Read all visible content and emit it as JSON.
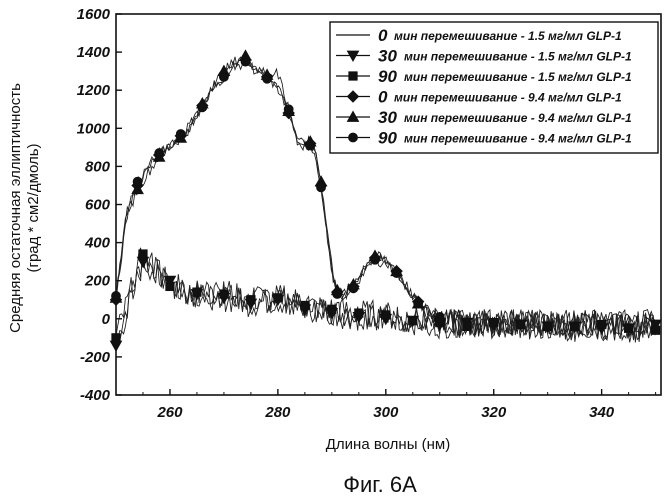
{
  "chart_data": {
    "type": "line",
    "title": "",
    "caption": "Фиг. 6A",
    "xlabel": "Длина волны (нм)",
    "ylabel_line1": "Средняя остаточная эллиптичность",
    "ylabel_line2": "(град * см2/дмоль)",
    "xlim": [
      250,
      351
    ],
    "ylim": [
      -400,
      1600
    ],
    "x_ticks": [
      260,
      280,
      300,
      320,
      340
    ],
    "y_ticks": [
      -400,
      -200,
      0,
      200,
      400,
      600,
      800,
      1000,
      1200,
      1400,
      1600
    ],
    "legend_position": "top-right",
    "series": [
      {
        "name": "мин перемешивание - 1.5 мг/мл GLP-1",
        "legend_num": "0",
        "marker": "none",
        "group": "low",
        "x": [
          250,
          255,
          260,
          265,
          270,
          275,
          280,
          285,
          290,
          295,
          300,
          305,
          310,
          315,
          320,
          325,
          330,
          335,
          340,
          345,
          350
        ],
        "y": [
          -120,
          320,
          180,
          120,
          140,
          90,
          120,
          60,
          40,
          20,
          10,
          0,
          -20,
          -30,
          -20,
          -40,
          -30,
          -50,
          -40,
          -60,
          -40
        ]
      },
      {
        "name": "мин перемешивание - 1.5 мг/мл GLP-1",
        "legend_num": "30",
        "marker": "triangle-down",
        "group": "low",
        "x": [
          250,
          255,
          260,
          265,
          270,
          275,
          280,
          285,
          290,
          295,
          300,
          305,
          310,
          315,
          320,
          325,
          330,
          335,
          340,
          345,
          350
        ],
        "y": [
          -140,
          300,
          200,
          130,
          110,
          80,
          100,
          50,
          30,
          10,
          0,
          -10,
          -30,
          -20,
          -30,
          -30,
          -40,
          -40,
          -50,
          -50,
          -30
        ]
      },
      {
        "name": "мин перемешивание - 1.5 мг/мл GLP-1",
        "legend_num": "90",
        "marker": "square",
        "group": "low",
        "x": [
          250,
          255,
          260,
          265,
          270,
          275,
          280,
          285,
          290,
          295,
          300,
          305,
          310,
          315,
          320,
          325,
          330,
          335,
          340,
          345,
          350
        ],
        "y": [
          -100,
          340,
          170,
          140,
          130,
          100,
          110,
          70,
          50,
          30,
          20,
          -10,
          -20,
          -40,
          -20,
          -30,
          -40,
          -40,
          -30,
          -50,
          -60
        ]
      },
      {
        "name": "мин перемешивание - 9.4 мг/мл GLP-1",
        "legend_num": "0",
        "marker": "diamond",
        "group": "high",
        "x": [
          250,
          252,
          254,
          256,
          258,
          260,
          262,
          264,
          266,
          268,
          270,
          272,
          274,
          276,
          278,
          280,
          282,
          284,
          286,
          287,
          288,
          290,
          291,
          292,
          294,
          296,
          298,
          300,
          302,
          304,
          306,
          308,
          310
        ],
        "y": [
          100,
          560,
          700,
          790,
          860,
          910,
          960,
          1020,
          1120,
          1220,
          1280,
          1330,
          1360,
          1310,
          1270,
          1210,
          1080,
          900,
          920,
          870,
          700,
          260,
          140,
          120,
          170,
          260,
          320,
          300,
          250,
          170,
          90,
          40,
          0
        ]
      },
      {
        "name": "мин перемешивание - 9.4 мг/мл GLP-1",
        "legend_num": "30",
        "marker": "triangle-up",
        "group": "high",
        "x": [
          250,
          252,
          254,
          256,
          258,
          260,
          262,
          264,
          266,
          268,
          270,
          272,
          274,
          276,
          278,
          280,
          282,
          284,
          286,
          287,
          288,
          290,
          291,
          292,
          294,
          296,
          298,
          300,
          302,
          304,
          306,
          308,
          310
        ],
        "y": [
          110,
          540,
          680,
          770,
          850,
          900,
          950,
          1010,
          1130,
          1230,
          1300,
          1350,
          1380,
          1320,
          1280,
          1230,
          1090,
          920,
          930,
          880,
          720,
          280,
          150,
          130,
          180,
          270,
          330,
          310,
          250,
          160,
          80,
          30,
          -10
        ]
      },
      {
        "name": "мин перемешивание - 9.4 мг/мл GLP-1",
        "legend_num": "90",
        "marker": "circle",
        "group": "high",
        "x": [
          250,
          252,
          254,
          256,
          258,
          260,
          262,
          264,
          266,
          268,
          270,
          272,
          274,
          276,
          278,
          280,
          282,
          284,
          286,
          287,
          288,
          290,
          291,
          292,
          294,
          296,
          298,
          300,
          302,
          304,
          306,
          308,
          310
        ],
        "y": [
          120,
          570,
          720,
          800,
          870,
          920,
          970,
          1030,
          1110,
          1210,
          1270,
          1320,
          1350,
          1300,
          1260,
          1290,
          1100,
          890,
          910,
          860,
          690,
          250,
          130,
          110,
          160,
          250,
          310,
          290,
          240,
          160,
          80,
          40,
          10
        ]
      }
    ]
  }
}
